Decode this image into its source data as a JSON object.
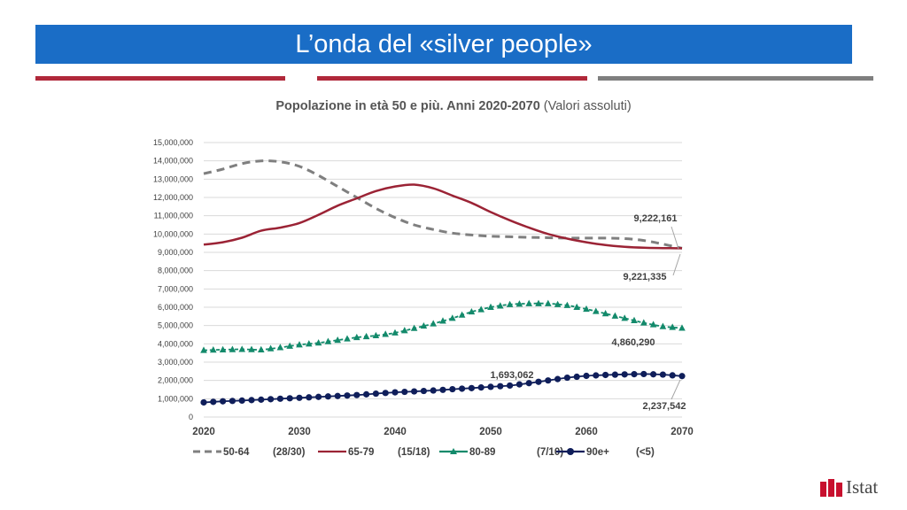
{
  "header": {
    "title": "L’onda del «silver people»"
  },
  "chart_title": {
    "bold": "Popolazione in età 50 e più. Anni 2020-2070",
    "normal": "(Valori assoluti)"
  },
  "logo": {
    "text": "Istat"
  },
  "colors": {
    "banner": "#1a6dc6",
    "rule_red": "#b0283a",
    "rule_grey": "#7f7f7f"
  },
  "chart_data": {
    "type": "line",
    "title": "Popolazione in età 50 e più. Anni 2020-2070 (Valori assoluti)",
    "xlabel": "",
    "ylabel": "",
    "xlim": [
      2020,
      2070
    ],
    "ylim": [
      0,
      15000000
    ],
    "x_ticks": [
      "2020",
      "2030",
      "2040",
      "2050",
      "2060",
      "2070"
    ],
    "y_ticks": [
      "0",
      "1,000,000",
      "2,000,000",
      "3,000,000",
      "4,000,000",
      "5,000,000",
      "6,000,000",
      "7,000,000",
      "8,000,000",
      "9,000,000",
      "10,000,000",
      "11,000,000",
      "12,000,000",
      "13,000,000",
      "14,000,000",
      "15,000,000"
    ],
    "grid": true,
    "legend_position": "bottom",
    "series": [
      {
        "name": "50-64 (28/30)",
        "color": "#7f7f7f",
        "style": "dashed",
        "x": [
          2020,
          2022,
          2024,
          2026,
          2028,
          2030,
          2032,
          2034,
          2036,
          2038,
          2040,
          2042,
          2044,
          2046,
          2048,
          2050,
          2052,
          2054,
          2056,
          2058,
          2060,
          2062,
          2064,
          2066,
          2068,
          2070
        ],
        "values": [
          13300000,
          13550000,
          13850000,
          14000000,
          13950000,
          13700000,
          13200000,
          12600000,
          12000000,
          11400000,
          10900000,
          10500000,
          10250000,
          10050000,
          9950000,
          9880000,
          9850000,
          9820000,
          9800000,
          9780000,
          9780000,
          9780000,
          9750000,
          9650000,
          9450000,
          9222161
        ]
      },
      {
        "name": "65-79 (15/18)",
        "color": "#9b2335",
        "style": "solid",
        "x": [
          2020,
          2022,
          2024,
          2026,
          2028,
          2030,
          2032,
          2034,
          2036,
          2038,
          2040,
          2042,
          2044,
          2046,
          2048,
          2050,
          2052,
          2054,
          2056,
          2058,
          2060,
          2062,
          2064,
          2066,
          2068,
          2070
        ],
        "values": [
          9420000,
          9550000,
          9800000,
          10180000,
          10350000,
          10600000,
          11050000,
          11550000,
          11950000,
          12350000,
          12600000,
          12700000,
          12500000,
          12100000,
          11700000,
          11200000,
          10750000,
          10350000,
          10000000,
          9750000,
          9550000,
          9400000,
          9300000,
          9250000,
          9230000,
          9221335
        ]
      },
      {
        "name": "80-89 (7/10)",
        "color": "#138a6b",
        "style": "triangle",
        "x": [
          2020,
          2022,
          2024,
          2026,
          2028,
          2030,
          2032,
          2034,
          2036,
          2038,
          2040,
          2042,
          2044,
          2046,
          2048,
          2050,
          2052,
          2054,
          2056,
          2058,
          2060,
          2062,
          2064,
          2066,
          2068,
          2070
        ],
        "values": [
          3650000,
          3680000,
          3700000,
          3680000,
          3800000,
          3950000,
          4050000,
          4200000,
          4350000,
          4450000,
          4600000,
          4850000,
          5100000,
          5400000,
          5750000,
          6000000,
          6150000,
          6200000,
          6200000,
          6100000,
          5900000,
          5650000,
          5400000,
          5150000,
          4950000,
          4860290
        ]
      },
      {
        "name": "90e+ (<5)",
        "color": "#0f1e5a",
        "style": "circle",
        "x": [
          2020,
          2022,
          2024,
          2026,
          2028,
          2030,
          2032,
          2034,
          2036,
          2038,
          2040,
          2042,
          2044,
          2046,
          2048,
          2050,
          2052,
          2054,
          2056,
          2058,
          2060,
          2062,
          2064,
          2066,
          2068,
          2070
        ],
        "values": [
          800000,
          860000,
          900000,
          950000,
          1000000,
          1050000,
          1100000,
          1150000,
          1200000,
          1280000,
          1350000,
          1400000,
          1450000,
          1520000,
          1580000,
          1650000,
          1720000,
          1850000,
          2000000,
          2150000,
          2250000,
          2300000,
          2330000,
          2350000,
          2320000,
          2237542
        ]
      }
    ],
    "legend": [
      {
        "label": "50-64",
        "note": "(28/30)"
      },
      {
        "label": "65-79",
        "note": "(15/18)"
      },
      {
        "label": "80-89",
        "note": "(7/10)"
      },
      {
        "label": "90e+",
        "note": "(<5)"
      }
    ],
    "annotations": [
      "9,222,161",
      "9,221,335",
      "4,860,290",
      "1,693,062",
      "2,237,542"
    ]
  }
}
